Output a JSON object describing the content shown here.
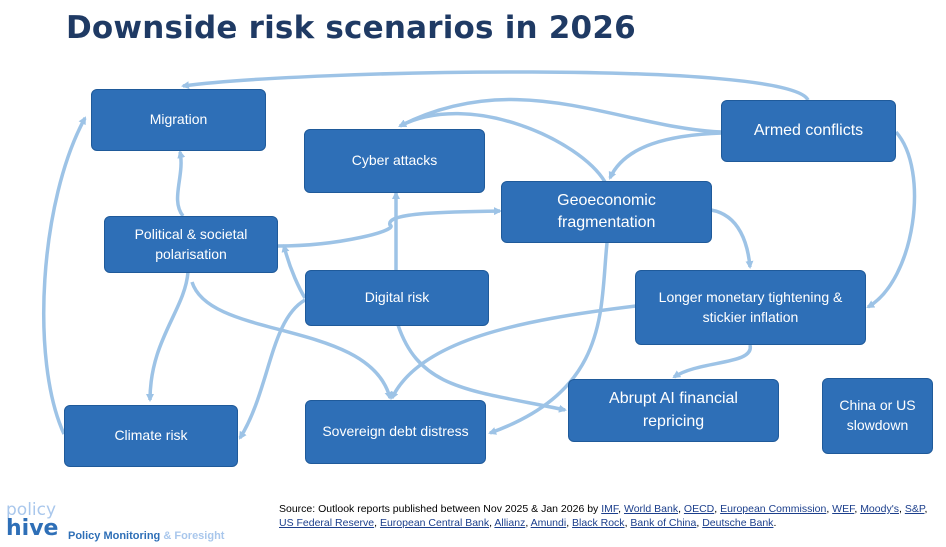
{
  "title": "Downside risk scenarios in 2026",
  "nodes": {
    "migration": "Migration",
    "cyber": "Cyber attacks",
    "armed": "Armed conflicts",
    "geo": [
      "Geoeconomic",
      "fragmentation"
    ],
    "political": [
      "Political & societal",
      "polarisation"
    ],
    "digital": "Digital risk",
    "monetary": [
      "Longer monetary tightening &",
      "stickier inflation"
    ],
    "climate": "Climate risk",
    "sovereign": "Sovereign debt distress",
    "ai": [
      "Abrupt AI financial",
      "repricing"
    ],
    "china": [
      "China or US",
      "slowdown"
    ]
  },
  "source": {
    "prefix": "Source: Outlook reports published between Nov 2025 & Jan 2026 by",
    "links": [
      "IMF",
      "World Bank",
      "OECD",
      "European Commission",
      "WEF",
      "Moody's",
      "S&P",
      "US Federal Reserve",
      "European Central Bank",
      "Allianz",
      "Amundi",
      "Black Rock",
      "Bank of China",
      "Deutsche Bank"
    ]
  },
  "logo": {
    "line1": "policy",
    "line2": "hive",
    "tag1": "Policy Monitoring",
    "tag2": "& Foresight"
  },
  "colors": {
    "box": "#2e6fb7",
    "arrow": "#9dc3e6",
    "title": "#1f3a64"
  }
}
